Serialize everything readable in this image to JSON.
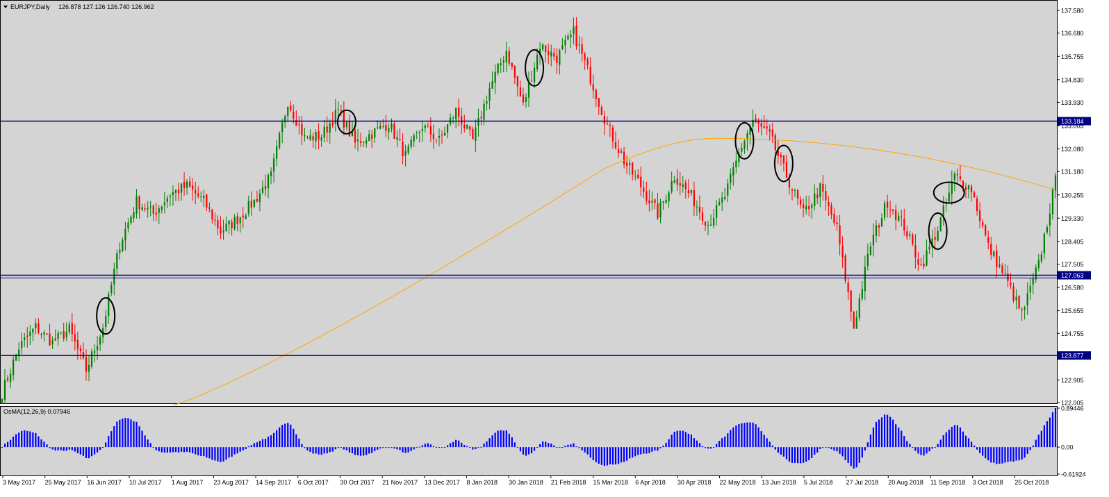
{
  "header": {
    "symbol_timeframe": "EURJPY,Daily",
    "ohlc": "126.878 127.126 126.740 126.962"
  },
  "osma_label": "OsMA(12,26,9) 0.07946",
  "colors": {
    "background": "#d4d4d4",
    "bull": "#008000",
    "bear": "#ff0000",
    "ma": "#ffa500",
    "hline": "#000080",
    "osma": "#0000ff",
    "frame": "#000000",
    "price_tag": "#000080"
  },
  "icons": {
    "dropdown": "triangle-down-icon",
    "marker": "ellipse-marker"
  },
  "chart_data": [
    {
      "type": "line",
      "title": "EURJPY,Daily",
      "ylim": [
        122.005,
        137.94
      ],
      "y_ticks": [
        "137.580",
        "136.680",
        "135.755",
        "134.830",
        "133.930",
        "133.005",
        "132.080",
        "131.180",
        "130.255",
        "129.330",
        "128.405",
        "127.505",
        "126.580",
        "125.655",
        "124.755",
        "122.905",
        "122.005"
      ],
      "x_ticks": [
        "3 May 2017",
        "25 May 2017",
        "16 Jun 2017",
        "10 Jul 2017",
        "1 Aug 2017",
        "23 Aug 2017",
        "14 Sep 2017",
        "6 Oct 2017",
        "30 Oct 2017",
        "21 Nov 2017",
        "13 Dec 2017",
        "8 Jan 2018",
        "30 Jan 2018",
        "21 Feb 2018",
        "15 Mar 2018",
        "6 Apr 2018",
        "30 Apr 2018",
        "22 May 2018",
        "13 Jun 2018",
        "5 Jul 2018",
        "27 Jul 2018",
        "20 Aug 2018",
        "11 Sep 2018",
        "3 Oct 2018",
        "25 Oct 2018"
      ],
      "horizontal_levels": [
        {
          "value": 133.184,
          "label": "133.184"
        },
        {
          "value": 127.063,
          "label": "127.063"
        },
        {
          "value": 123.877,
          "label": "123.877"
        }
      ],
      "close_series": {
        "name": "EURJPY",
        "x_index": [
          0,
          6,
          12,
          18,
          24,
          30,
          36,
          42,
          48,
          54,
          60,
          66,
          72,
          78,
          84,
          90,
          96,
          102,
          108,
          114,
          120,
          126,
          132,
          138,
          144,
          150,
          156,
          162,
          168,
          174,
          180,
          186,
          192,
          198,
          204,
          210,
          216,
          222,
          228,
          234,
          240,
          246,
          252,
          258,
          264,
          268,
          274,
          280,
          286,
          292,
          298,
          304,
          310,
          316,
          322,
          328,
          334,
          340,
          346,
          352,
          358,
          364,
          370,
          376
        ],
        "values": [
          122.4,
          124.2,
          125.0,
          124.4,
          124.9,
          123.3,
          125.0,
          128.3,
          130.0,
          129.5,
          130.3,
          130.6,
          130.0,
          128.8,
          129.3,
          130.0,
          131.0,
          134.0,
          132.5,
          132.6,
          133.6,
          132.3,
          132.7,
          133.1,
          131.8,
          133.0,
          132.4,
          133.6,
          132.4,
          134.5,
          136.0,
          133.8,
          136.2,
          135.7,
          136.7,
          134.9,
          133.0,
          131.6,
          130.6,
          129.5,
          131.0,
          130.2,
          129.1,
          130.2,
          132.2,
          133.2,
          132.6,
          131.0,
          129.5,
          130.5,
          128.9,
          125.0,
          128.3,
          130.0,
          129.0,
          127.4,
          128.9,
          131.0,
          130.5,
          128.2,
          127.0,
          125.5,
          127.5,
          130.8
        ],
        "min": 122.0,
        "max": 137.9
      },
      "moving_average": {
        "from_index": 61,
        "to_index": 376,
        "start": 121.9,
        "mid_point": 131.3,
        "mid_index": 215,
        "peak": 132.5,
        "peak_index": 255,
        "end": 130.45
      },
      "circled_candles": [
        37,
        123,
        190,
        265,
        279,
        334,
        338
      ],
      "grid": false,
      "legend": "none"
    },
    {
      "type": "bar",
      "title": "OsMA(12,26,9) 0.07946",
      "ylim": [
        -0.619,
        0.894
      ],
      "y_ticks": [
        "0.89446",
        "0.00",
        "-0.61924"
      ],
      "value_last": 0.07946
    }
  ]
}
